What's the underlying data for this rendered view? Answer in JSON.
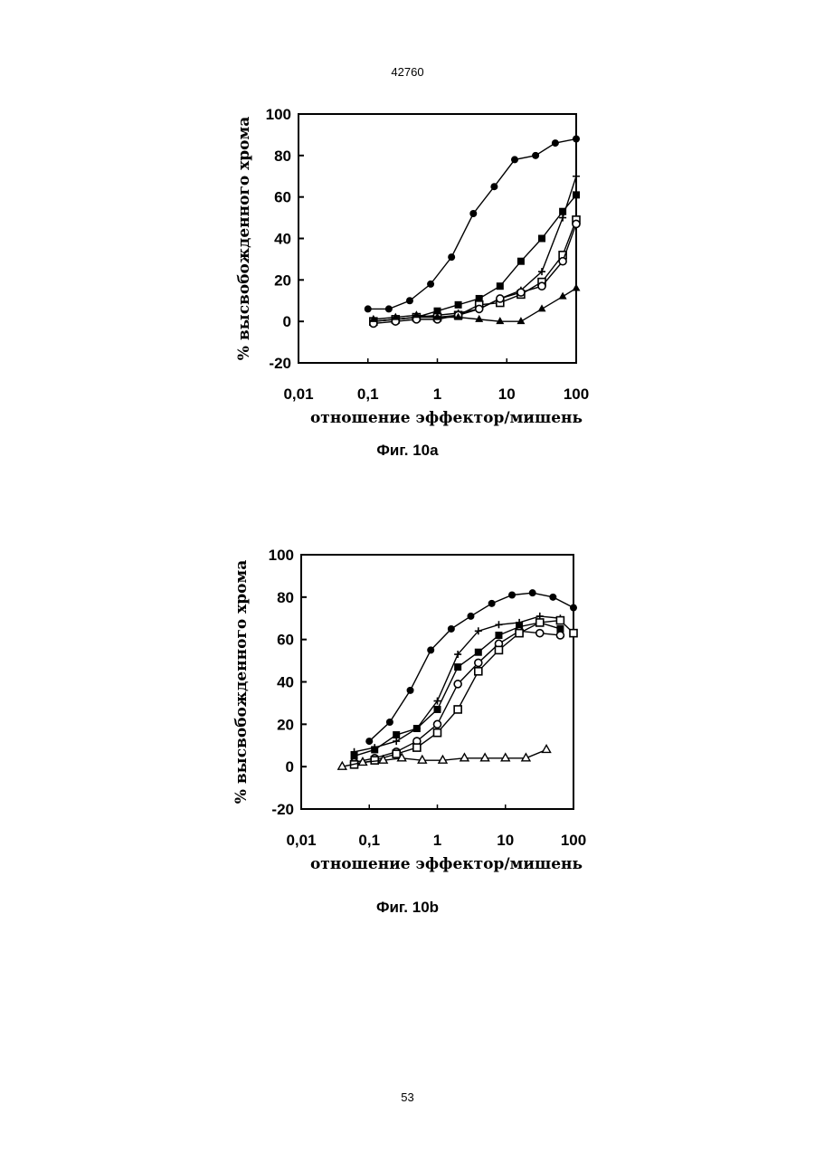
{
  "page": {
    "header": "42760",
    "page_number": "53"
  },
  "chart_data": [
    {
      "type": "line",
      "caption": "Фиг. 10a",
      "title": "",
      "xlabel": "отношение эффектор/мишень",
      "ylabel": "% высвобожденного хрома",
      "x_scale": "log",
      "xlim": [
        0.01,
        100
      ],
      "ylim": [
        -20,
        100
      ],
      "x_ticks": [
        0.01,
        0.1,
        1,
        10,
        100
      ],
      "x_tick_labels": [
        "0,01",
        "0,1",
        "1",
        "10",
        "100"
      ],
      "y_ticks": [
        -20,
        0,
        20,
        40,
        60,
        80,
        100
      ],
      "y_tick_labels": [
        "-20",
        "0",
        "20",
        "40",
        "60",
        "80",
        "100"
      ],
      "grid": false,
      "legend": "none",
      "series": [
        {
          "marker": "filled-circle",
          "x": [
            0.1,
            0.2,
            0.4,
            0.8,
            1.6,
            3.3,
            6.6,
            13,
            26,
            50,
            100
          ],
          "y": [
            6,
            6,
            10,
            18,
            31,
            52,
            65,
            78,
            80,
            86,
            88
          ]
        },
        {
          "marker": "filled-square",
          "x": [
            0.12,
            0.25,
            0.5,
            1,
            2,
            4,
            8,
            16,
            32,
            64,
            100
          ],
          "y": [
            0,
            1,
            2,
            5,
            8,
            11,
            17,
            29,
            40,
            53,
            61
          ]
        },
        {
          "marker": "plus",
          "x": [
            0.12,
            0.25,
            0.5,
            1,
            2,
            4,
            8,
            16,
            32,
            64,
            100
          ],
          "y": [
            0,
            1,
            2,
            3,
            4,
            6,
            11,
            15,
            24,
            50,
            70
          ]
        },
        {
          "marker": "open-square",
          "x": [
            0.12,
            0.25,
            0.5,
            1,
            2,
            4,
            8,
            16,
            32,
            64,
            100
          ],
          "y": [
            0,
            1,
            2,
            2,
            3,
            8,
            9,
            13,
            19,
            32,
            49
          ]
        },
        {
          "marker": "open-circle",
          "x": [
            0.12,
            0.25,
            0.5,
            1,
            2,
            4,
            8,
            16,
            32,
            64,
            100
          ],
          "y": [
            -1,
            0,
            1,
            1,
            3,
            6,
            11,
            14,
            17,
            29,
            47
          ]
        },
        {
          "marker": "filled-triangle",
          "x": [
            0.12,
            0.25,
            0.5,
            1,
            2,
            4,
            8,
            16,
            32,
            64,
            100
          ],
          "y": [
            1,
            2,
            3,
            2,
            2,
            1,
            0,
            0,
            6,
            12,
            16
          ]
        }
      ]
    },
    {
      "type": "line",
      "caption": "Фиг. 10b",
      "title": "",
      "xlabel": "отношение эффектор/мишень",
      "ylabel": "% высвобожденного хрома",
      "x_scale": "log",
      "xlim": [
        0.01,
        100
      ],
      "ylim": [
        -20,
        100
      ],
      "x_ticks": [
        0.01,
        0.1,
        1,
        10,
        100
      ],
      "x_tick_labels": [
        "0,01",
        "0,1",
        "1",
        "10",
        "100"
      ],
      "y_ticks": [
        -20,
        0,
        20,
        40,
        60,
        80,
        100
      ],
      "y_tick_labels": [
        "-20",
        "0",
        "20",
        "40",
        "60",
        "80",
        "100"
      ],
      "grid": false,
      "legend": "none",
      "series": [
        {
          "marker": "filled-circle",
          "x": [
            0.1,
            0.2,
            0.4,
            0.8,
            1.6,
            3.1,
            6.3,
            12.5,
            25,
            50,
            100
          ],
          "y": [
            12,
            21,
            36,
            55,
            65,
            71,
            77,
            81,
            82,
            80,
            75
          ]
        },
        {
          "marker": "filled-square",
          "x": [
            0.06,
            0.12,
            0.25,
            0.5,
            1,
            2,
            4,
            8,
            16,
            32,
            64
          ],
          "y": [
            5,
            8,
            15,
            18,
            27,
            47,
            54,
            62,
            66,
            68,
            65
          ]
        },
        {
          "marker": "plus",
          "x": [
            0.06,
            0.12,
            0.25,
            0.5,
            1,
            2,
            4,
            8,
            16,
            32,
            64
          ],
          "y": [
            7,
            9,
            12,
            18,
            31,
            53,
            64,
            67,
            68,
            71,
            70
          ]
        },
        {
          "marker": "open-circle",
          "x": [
            0.06,
            0.12,
            0.25,
            0.5,
            1,
            2,
            4,
            8,
            16,
            32,
            64
          ],
          "y": [
            2,
            4,
            7,
            12,
            20,
            39,
            49,
            58,
            64,
            63,
            62
          ]
        },
        {
          "marker": "open-square",
          "x": [
            0.06,
            0.12,
            0.25,
            0.5,
            1,
            2,
            4,
            8,
            16,
            32,
            64,
            100
          ],
          "y": [
            1,
            3,
            6,
            9,
            16,
            27,
            45,
            55,
            63,
            68,
            69,
            63
          ]
        },
        {
          "marker": "open-triangle",
          "x": [
            0.04,
            0.08,
            0.16,
            0.3,
            0.6,
            1.2,
            2.5,
            5,
            10,
            20,
            40
          ],
          "y": [
            0,
            2,
            3,
            4,
            3,
            3,
            4,
            4,
            4,
            4,
            8
          ]
        }
      ]
    }
  ]
}
